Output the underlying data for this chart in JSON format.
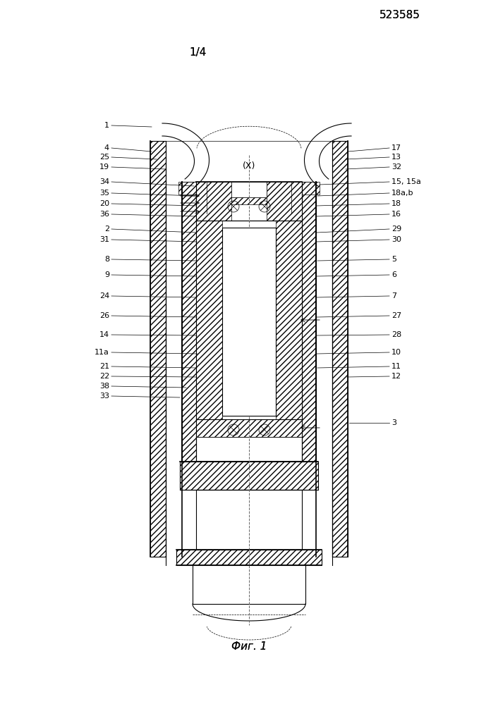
{
  "title_number": "523585",
  "page_label": "1/4",
  "fig_label": "Фиг. 1",
  "axis_label": "(X)",
  "bg_color": "#ffffff",
  "line_color": "#000000"
}
